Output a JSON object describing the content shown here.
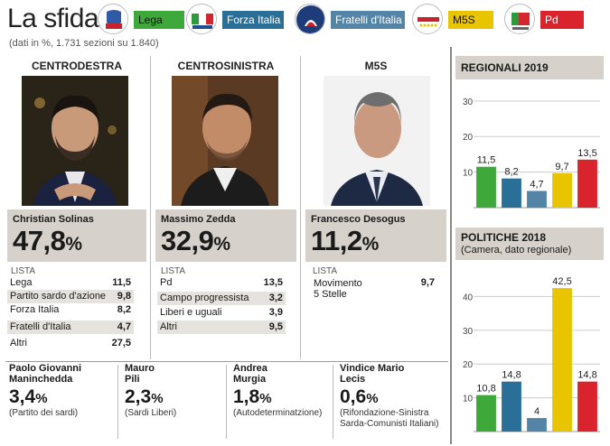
{
  "header": {
    "title": "La sfida",
    "subtitle": "(dati in %, 1.731 sezioni su 1.840)"
  },
  "legend": [
    {
      "name": "Lega",
      "color": "#3ea83a",
      "logo_icon": "lega-salvini-logo"
    },
    {
      "name": "Forza Italia",
      "color": "#2a6f97",
      "logo_icon": "forza-italia-logo"
    },
    {
      "name": "Fratelli d'Italia",
      "color": "#5484a6",
      "logo_icon": "fratelli-italia-logo"
    },
    {
      "name": "M5S",
      "color": "#e9c400",
      "logo_icon": "movimento-5-stelle-logo"
    },
    {
      "name": "Pd",
      "color": "#d9232d",
      "logo_icon": "pd-logo"
    }
  ],
  "coalitions": [
    {
      "heading": "CENTRODESTRA",
      "candidate": "Christian Solinas",
      "pct": "47,8",
      "pct_unit": "%",
      "lista_label": "LISTA",
      "rows": [
        {
          "label": "Lega",
          "value": "11,5"
        },
        {
          "label": "Partito sardo d'azione",
          "value": "9,8"
        },
        {
          "label": "Forza Italia",
          "value": "8,2"
        },
        {
          "label": "Fratelli d'Italia",
          "value": "4,7"
        },
        {
          "label": "Altri",
          "value": "27,5"
        }
      ]
    },
    {
      "heading": "CENTROSINISTRA",
      "candidate": "Massimo Zedda",
      "pct": "32,9",
      "pct_unit": "%",
      "lista_label": "LISTA",
      "rows": [
        {
          "label": "Pd",
          "value": "13,5"
        },
        {
          "label": "Campo progressista",
          "value": "3,2"
        },
        {
          "label": "Liberi e uguali",
          "value": "3,9"
        },
        {
          "label": "Altri",
          "value": "9,5"
        }
      ]
    },
    {
      "heading": "M5S",
      "candidate": "Francesco Desogus",
      "pct": "11,2",
      "pct_unit": "%",
      "lista_label": "LISTA",
      "rows": [
        {
          "label_line1": "Movimento",
          "label_line2": "5 Stelle",
          "value": "9,7"
        }
      ]
    }
  ],
  "minor_candidates": [
    {
      "name_line1": "Paolo Giovanni",
      "name_line2": "Maninchedda",
      "pct": "3,4",
      "pct_unit": "%",
      "party_line1": "(Partito dei sardi)",
      "party_line2": ""
    },
    {
      "name_line1": "Mauro",
      "name_line2": "Pili",
      "pct": "2,3",
      "pct_unit": "%",
      "party_line1": "(Sardi Liberi)",
      "party_line2": ""
    },
    {
      "name_line1": "Andrea",
      "name_line2": "Murgia",
      "pct": "1,8",
      "pct_unit": "%",
      "party_line1": "(Autodeterminatzione)",
      "party_line2": ""
    },
    {
      "name_line1": "Vindice Mario",
      "name_line2": "Lecis",
      "pct": "0,6",
      "pct_unit": "%",
      "party_line1": "(Rifondazione-Sinistra",
      "party_line2": "Sarda-Comunisti Italiani)"
    }
  ],
  "chart_data": [
    {
      "type": "bar",
      "title": "REGIONALI 2019",
      "subtitle": "",
      "categories": [
        "Lega",
        "Forza Italia",
        "Fratelli d'Italia",
        "M5S",
        "Pd"
      ],
      "values": [
        11.5,
        8.2,
        4.7,
        9.7,
        13.5
      ],
      "value_labels": [
        "11,5",
        "8,2",
        "4,7",
        "9,7",
        "13,5"
      ],
      "colors": [
        "#3ea83a",
        "#2a6f97",
        "#5484a6",
        "#e9c400",
        "#d9232d"
      ],
      "yticks": [
        10,
        20,
        30
      ],
      "ylim": [
        0,
        33
      ],
      "grid": true
    },
    {
      "type": "bar",
      "title": "POLITICHE 2018",
      "subtitle": "(Camera, dato regionale)",
      "categories": [
        "Lega",
        "Forza Italia",
        "Fratelli d'Italia",
        "M5S",
        "Pd"
      ],
      "values": [
        10.8,
        14.8,
        4,
        42.5,
        14.8
      ],
      "value_labels": [
        "10,8",
        "14,8",
        "4",
        "42,5",
        "14,8"
      ],
      "colors": [
        "#3ea83a",
        "#2a6f97",
        "#5484a6",
        "#e9c400",
        "#d9232d"
      ],
      "yticks": [
        10,
        20,
        30,
        40
      ],
      "ylim": [
        0,
        46
      ],
      "grid": true
    }
  ]
}
